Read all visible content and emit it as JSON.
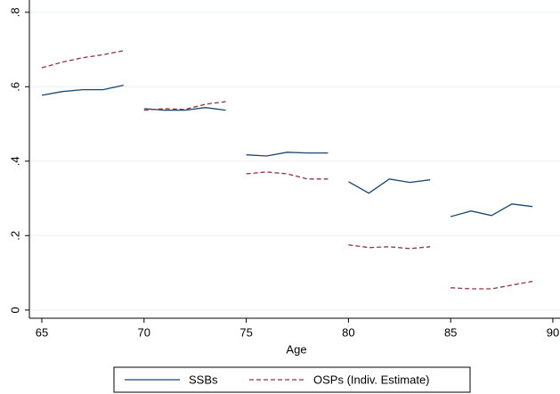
{
  "chart_data": {
    "type": "line",
    "x_label": "Age",
    "x": [
      65,
      66,
      67,
      68,
      69,
      null,
      70,
      71,
      72,
      73,
      74,
      null,
      75,
      76,
      77,
      78,
      79,
      null,
      80,
      81,
      82,
      83,
      84,
      null,
      85,
      86,
      87,
      88,
      89
    ],
    "series": [
      {
        "name": "SSBs",
        "color": "#1a476f",
        "dash": "solid",
        "values": [
          0.577,
          0.587,
          0.592,
          0.592,
          0.604,
          null,
          0.541,
          0.537,
          0.537,
          0.544,
          0.537,
          null,
          0.417,
          0.414,
          0.424,
          0.422,
          0.422,
          null,
          0.345,
          0.314,
          0.352,
          0.343,
          0.35,
          null,
          0.251,
          0.266,
          0.254,
          0.285,
          0.278
        ]
      },
      {
        "name": "OSPs (Indiv. Estimate)",
        "color": "#90353b",
        "dash": "dashed",
        "values": [
          0.651,
          0.666,
          0.678,
          0.686,
          0.697,
          null,
          0.537,
          0.541,
          0.539,
          0.553,
          0.56,
          null,
          0.366,
          0.371,
          0.366,
          0.352,
          0.352,
          null,
          0.175,
          0.168,
          0.17,
          0.165,
          0.17,
          null,
          0.06,
          0.057,
          0.057,
          0.067,
          0.077
        ]
      }
    ],
    "xlim": [
      64.39,
      90.35
    ],
    "xticks": [
      65,
      70,
      75,
      80,
      85,
      90
    ],
    "ylim": [
      -0.022,
      0.833
    ],
    "yticks": [
      0,
      {
        "value": 0.2,
        "label": ".2"
      },
      {
        "value": 0.4,
        "label": ".4"
      },
      {
        "value": 0.6,
        "label": ".6"
      },
      {
        "value": 0.8,
        "label": ".8"
      }
    ],
    "grid": true,
    "legend": "bottom"
  }
}
